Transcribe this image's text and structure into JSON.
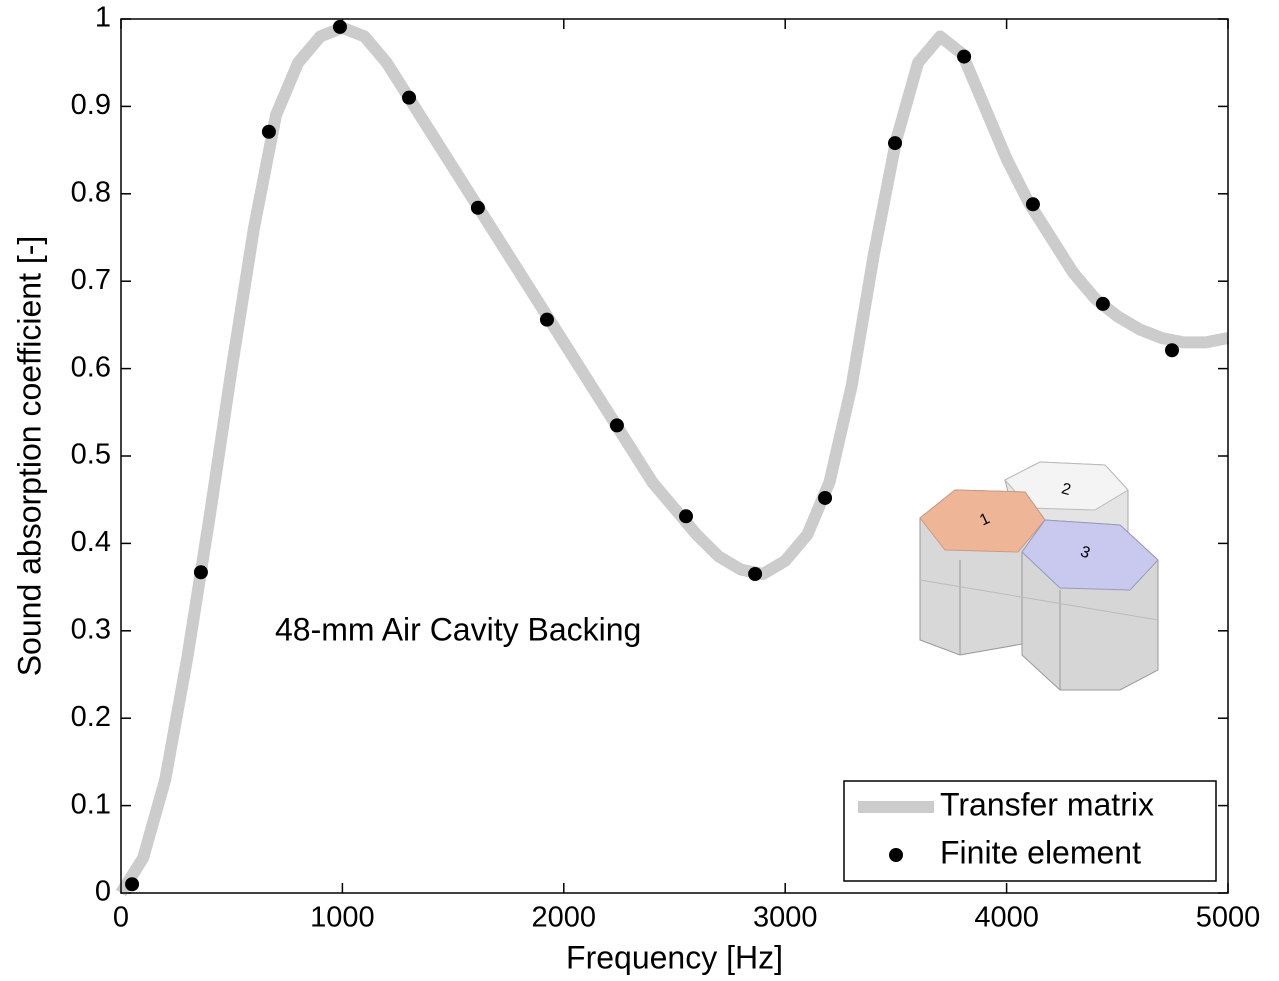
{
  "chart_data": {
    "type": "line",
    "x_label": "Frequency [Hz]",
    "y_label": "Sound absorption coefficient [-]",
    "annotation": "48-mm Air Cavity Backing",
    "inset_labels": [
      "1",
      "2",
      "3"
    ],
    "xlim": [
      0,
      5000
    ],
    "xticks": [
      0,
      1000,
      2000,
      3000,
      4000,
      5000
    ],
    "ylim": [
      0,
      1
    ],
    "yticks": [
      0,
      0.1,
      0.2,
      0.3,
      0.4,
      0.5,
      0.6,
      0.7,
      0.8,
      0.9,
      1
    ],
    "grid": false,
    "legend": "lower right",
    "series": [
      {
        "name": "Transfer matrix",
        "type": "line",
        "color": "#cccccc",
        "x": [
          0,
          100,
          200,
          300,
          400,
          500,
          600,
          700,
          800,
          900,
          1000,
          1100,
          1200,
          1300,
          1400,
          1500,
          1600,
          1700,
          1800,
          1900,
          2000,
          2100,
          2200,
          2300,
          2400,
          2500,
          2600,
          2700,
          2800,
          2900,
          3000,
          3100,
          3200,
          3300,
          3400,
          3500,
          3600,
          3700,
          3800,
          3900,
          4000,
          4100,
          4200,
          4300,
          4400,
          4500,
          4600,
          4700,
          4800,
          4900,
          5000
        ],
        "values": [
          0.0,
          0.04,
          0.13,
          0.27,
          0.43,
          0.6,
          0.76,
          0.89,
          0.95,
          0.98,
          0.99,
          0.98,
          0.95,
          0.91,
          0.87,
          0.83,
          0.79,
          0.75,
          0.71,
          0.67,
          0.63,
          0.59,
          0.55,
          0.51,
          0.47,
          0.44,
          0.41,
          0.385,
          0.37,
          0.365,
          0.38,
          0.41,
          0.47,
          0.58,
          0.73,
          0.86,
          0.95,
          0.98,
          0.96,
          0.9,
          0.84,
          0.79,
          0.75,
          0.71,
          0.68,
          0.66,
          0.645,
          0.635,
          0.63,
          0.63,
          0.635
        ]
      },
      {
        "name": "Finite element",
        "type": "scatter",
        "color": "#000000",
        "x": [
          50,
          361,
          668,
          989,
          1301,
          1612,
          1924,
          2240,
          2552,
          2864,
          3180,
          3496,
          3808,
          4119,
          4435,
          4747
        ],
        "values": [
          0.01,
          0.367,
          0.871,
          0.991,
          0.91,
          0.784,
          0.656,
          0.535,
          0.431,
          0.365,
          0.452,
          0.858,
          0.957,
          0.788,
          0.674,
          0.621
        ]
      }
    ]
  }
}
